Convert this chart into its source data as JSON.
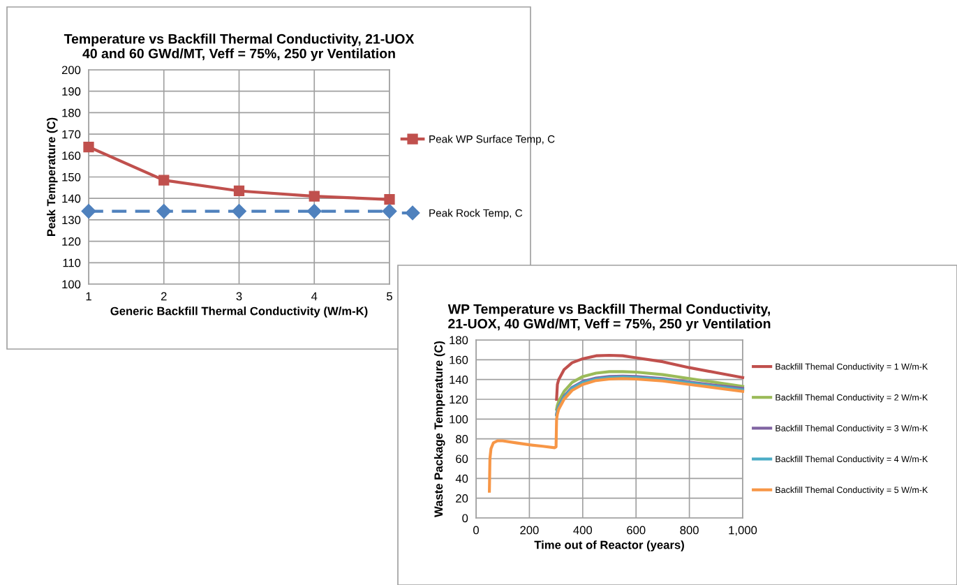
{
  "chart_data": [
    {
      "type": "line",
      "title": "Temperature vs Backfill Thermal Conductivity, 21-UOX\n40 and 60 GWd/MT, Veff = 75%, 250 yr Ventilation",
      "xlabel": "Generic Backfill Thermal Conductivity (W/m-K)",
      "ylabel": "Peak Temperature (C)",
      "x": [
        1,
        2,
        3,
        4,
        5
      ],
      "xlim": [
        1,
        5
      ],
      "ylim": [
        100,
        200
      ],
      "xticks": [
        1,
        2,
        3,
        4,
        5
      ],
      "yticks": [
        100,
        110,
        120,
        130,
        140,
        150,
        160,
        170,
        180,
        190,
        200
      ],
      "grid": true,
      "legend": "right",
      "series": [
        {
          "name": "Peak WP Surface Temp, C",
          "color": "#c0504d",
          "marker": "square",
          "line_style": "solid",
          "values": [
            164,
            148.5,
            143.5,
            141,
            139.5
          ]
        },
        {
          "name": "Peak Rock Temp, C",
          "color": "#4f81bd",
          "marker": "diamond",
          "line_style": "dashed",
          "values": [
            134,
            134,
            134,
            134,
            134
          ]
        }
      ]
    },
    {
      "type": "line",
      "title": "WP Temperature vs Backfill Thermal Conductivity,\n21-UOX, 40 GWd/MT, Veff = 75%, 250 yr Ventilation",
      "xlabel": "Time out of Reactor (years)",
      "ylabel": "Waste Package Temperature (C)",
      "xlim": [
        0,
        1000
      ],
      "ylim": [
        0,
        180
      ],
      "xticks": [
        0,
        200,
        400,
        600,
        800,
        {
          "value": 1000,
          "label": "1,000"
        }
      ],
      "yticks": [
        0,
        20,
        40,
        60,
        80,
        100,
        120,
        140,
        160,
        180
      ],
      "grid": true,
      "legend": "right",
      "marker": "none",
      "line_style": "solid",
      "x": [
        50,
        52,
        56,
        65,
        80,
        100,
        150,
        200,
        250,
        295,
        300,
        302,
        305,
        310,
        330,
        360,
        400,
        450,
        500,
        550,
        600,
        700,
        800,
        900,
        1000
      ],
      "series": [
        {
          "name": "Backfill Themal Conductivity = 1 W/m-K",
          "color": "#c0504d",
          "x": [
            302,
            305,
            310,
            330,
            360,
            400,
            450,
            500,
            550,
            600,
            700,
            800,
            900,
            1000
          ],
          "values": [
            120,
            135,
            140,
            150,
            157,
            161,
            164,
            164.5,
            164,
            162,
            158,
            152,
            147,
            142
          ]
        },
        {
          "name": "Backfill Themal Conductivity = 2 W/m-K",
          "color": "#9bbb59",
          "x": [
            302,
            305,
            310,
            330,
            360,
            400,
            450,
            500,
            550,
            600,
            700,
            800,
            900,
            1000
          ],
          "values": [
            110,
            114,
            118,
            128,
            137,
            143,
            146.5,
            148,
            148,
            147.5,
            145,
            141,
            137,
            133
          ]
        },
        {
          "name": "Backfill Themal Conductivity = 3 W/m-K",
          "color": "#8064a2",
          "x": [
            302,
            305,
            310,
            330,
            360,
            400,
            450,
            500,
            550,
            600,
            700,
            800,
            900,
            1000
          ],
          "values": [
            105,
            109,
            113,
            123,
            132,
            138,
            141.5,
            143,
            143.5,
            143,
            141,
            137.5,
            134,
            131
          ]
        },
        {
          "name": "Backfill Themal Conductivity = 4 W/m-K",
          "color": "#4bacc6",
          "x": [
            302,
            305,
            310,
            330,
            360,
            400,
            450,
            500,
            550,
            600,
            700,
            800,
            900,
            1000
          ],
          "values": [
            104,
            108,
            112,
            122,
            131,
            137,
            140.5,
            142,
            142.5,
            142,
            140,
            136.5,
            133,
            129.5
          ]
        },
        {
          "name": "Backfill Themal Conductivity = 5 W/m-K",
          "color": "#f79646",
          "values": [
            27,
            60,
            70,
            76,
            78,
            78,
            76,
            74,
            72.5,
            71,
            72,
            100,
            105,
            110,
            120,
            129,
            135,
            139,
            140.5,
            141,
            140.5,
            138.5,
            135,
            131.5,
            128
          ]
        }
      ]
    }
  ]
}
